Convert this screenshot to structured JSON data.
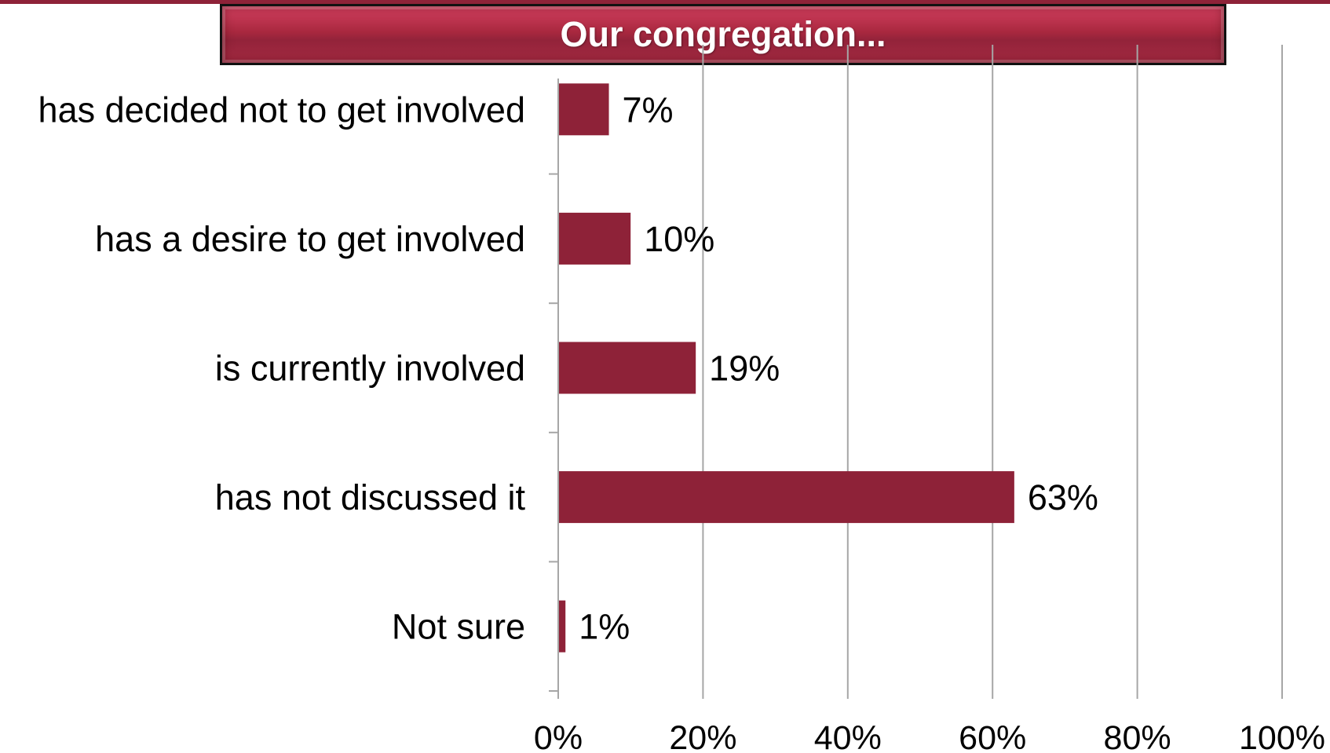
{
  "chart_data": {
    "type": "bar",
    "orientation": "horizontal",
    "title": "Our congregation...",
    "categories": [
      "has decided not to get involved",
      "has a desire to get involved",
      "is currently involved",
      "has not discussed it",
      "Not sure"
    ],
    "values": [
      7,
      10,
      19,
      63,
      1
    ],
    "value_labels": [
      "7%",
      "10%",
      "19%",
      "63%",
      "1%"
    ],
    "xlim": [
      0,
      100
    ],
    "x_ticks": [
      0,
      20,
      40,
      60,
      80,
      100
    ],
    "x_tick_labels": [
      "0%",
      "20%",
      "40%",
      "60%",
      "80%",
      "100%"
    ],
    "xlabel": "",
    "ylabel": "",
    "grid": "vertical",
    "legend": "none",
    "bar_color": "#8e2238",
    "gridline_color": "#a6a6a6"
  }
}
